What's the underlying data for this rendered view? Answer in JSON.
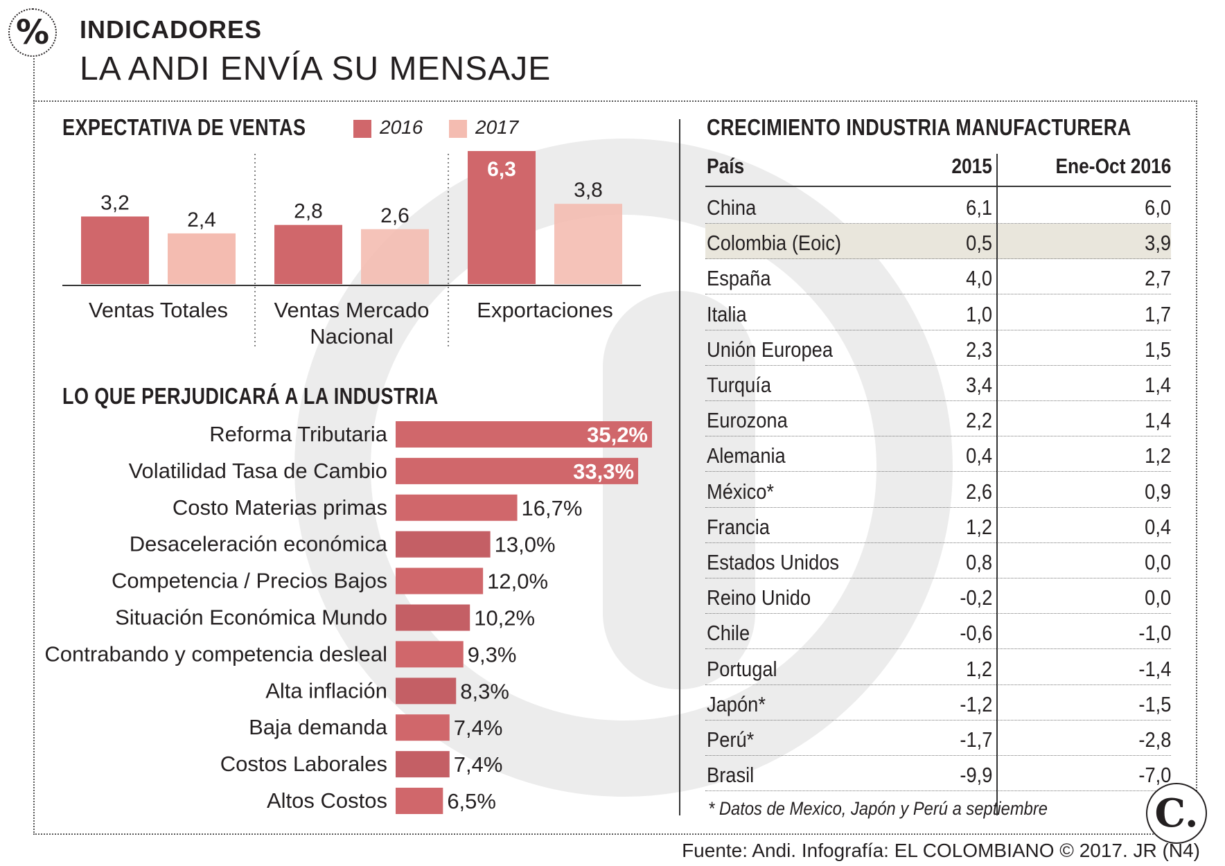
{
  "header": {
    "section_label": "INDICADORES",
    "headline": "LA ANDI ENVÍA SU MENSAJE",
    "icon": "percent-icon"
  },
  "colors": {
    "bar_2016": "#d0676b",
    "bar_2017": "#f4bcb1",
    "harm_bar": "#d0676b",
    "highlight_row": "#e9e6dc",
    "text": "#231f20"
  },
  "sales": {
    "title": "EXPECTATIVA DE VENTAS",
    "legend": [
      "2016",
      "2017"
    ]
  },
  "harm": {
    "title": "LO QUE PERJUDICARÁ A LA INDUSTRIA"
  },
  "table": {
    "title": "CRECIMIENTO INDUSTRIA MANUFACTURERA",
    "columns": [
      "País",
      "2015",
      "Ene-Oct 2016"
    ],
    "rows": [
      {
        "country": "China",
        "v2015": "6,1",
        "v2016": "6,0"
      },
      {
        "country": "Colombia (Eoic)",
        "v2015": "0,5",
        "v2016": "3,9",
        "highlight": true
      },
      {
        "country": "España",
        "v2015": "4,0",
        "v2016": "2,7"
      },
      {
        "country": "Italia",
        "v2015": "1,0",
        "v2016": "1,7"
      },
      {
        "country": "Unión Europea",
        "v2015": "2,3",
        "v2016": "1,5"
      },
      {
        "country": "Turquía",
        "v2015": "3,4",
        "v2016": "1,4"
      },
      {
        "country": "Eurozona",
        "v2015": "2,2",
        "v2016": "1,4"
      },
      {
        "country": "Alemania",
        "v2015": "0,4",
        "v2016": "1,2"
      },
      {
        "country": "México*",
        "v2015": "2,6",
        "v2016": "0,9"
      },
      {
        "country": "Francia",
        "v2015": "1,2",
        "v2016": "0,4"
      },
      {
        "country": "Estados Unidos",
        "v2015": "0,8",
        "v2016": "0,0"
      },
      {
        "country": "Reino Unido",
        "v2015": "-0,2",
        "v2016": "0,0"
      },
      {
        "country": "Chile",
        "v2015": "-0,6",
        "v2016": "-1,0"
      },
      {
        "country": "Portugal",
        "v2015": "1,2",
        "v2016": "-1,4"
      },
      {
        "country": "Japón*",
        "v2015": "-1,2",
        "v2016": "-1,5"
      },
      {
        "country": "Perú*",
        "v2015": "-1,7",
        "v2016": "-2,8"
      },
      {
        "country": "Brasil",
        "v2015": "-9,9",
        "v2016": "-7,0"
      }
    ],
    "footnote": "* Datos de Mexico, Japón y Perú a septiembre"
  },
  "footer": {
    "source": "Fuente: Andi. Infografía: EL COLOMBIANO © 2017. JR (N4)",
    "brand_letter": "C."
  },
  "chart_data": [
    {
      "type": "bar",
      "title": "EXPECTATIVA DE VENTAS",
      "categories": [
        "Ventas Totales",
        "Ventas Mercado Nacional",
        "Exportaciones"
      ],
      "series": [
        {
          "name": "2016",
          "values": [
            3.2,
            2.8,
            6.3
          ],
          "labels": [
            "3,2",
            "2,8",
            "6,3"
          ]
        },
        {
          "name": "2017",
          "values": [
            2.4,
            2.6,
            3.8
          ],
          "labels": [
            "2,4",
            "2,6",
            "3,8"
          ]
        }
      ],
      "ylim": [
        0,
        6.3
      ],
      "legend_position": "top"
    },
    {
      "type": "bar",
      "orientation": "horizontal",
      "title": "LO QUE PERJUDICARÁ A LA INDUSTRIA",
      "categories": [
        "Reforma Tributaria",
        "Volatilidad Tasa de Cambio",
        "Costo Materias primas",
        "Desaceleración económica",
        "Competencia / Precios Bajos",
        "Situación Económica Mundo",
        "Contrabando y competencia desleal",
        "Alta inflación",
        "Baja demanda",
        "Costos Laborales",
        "Altos Costos"
      ],
      "values": [
        35.2,
        33.3,
        16.7,
        13.0,
        12.0,
        10.2,
        9.3,
        8.3,
        7.4,
        7.4,
        6.5
      ],
      "labels": [
        "35,2%",
        "33,3%",
        "16,7%",
        "13,0%",
        "12,0%",
        "10,2%",
        "9,3%",
        "8,3%",
        "7,4%",
        "7,4%",
        "6,5%"
      ]
    }
  ]
}
